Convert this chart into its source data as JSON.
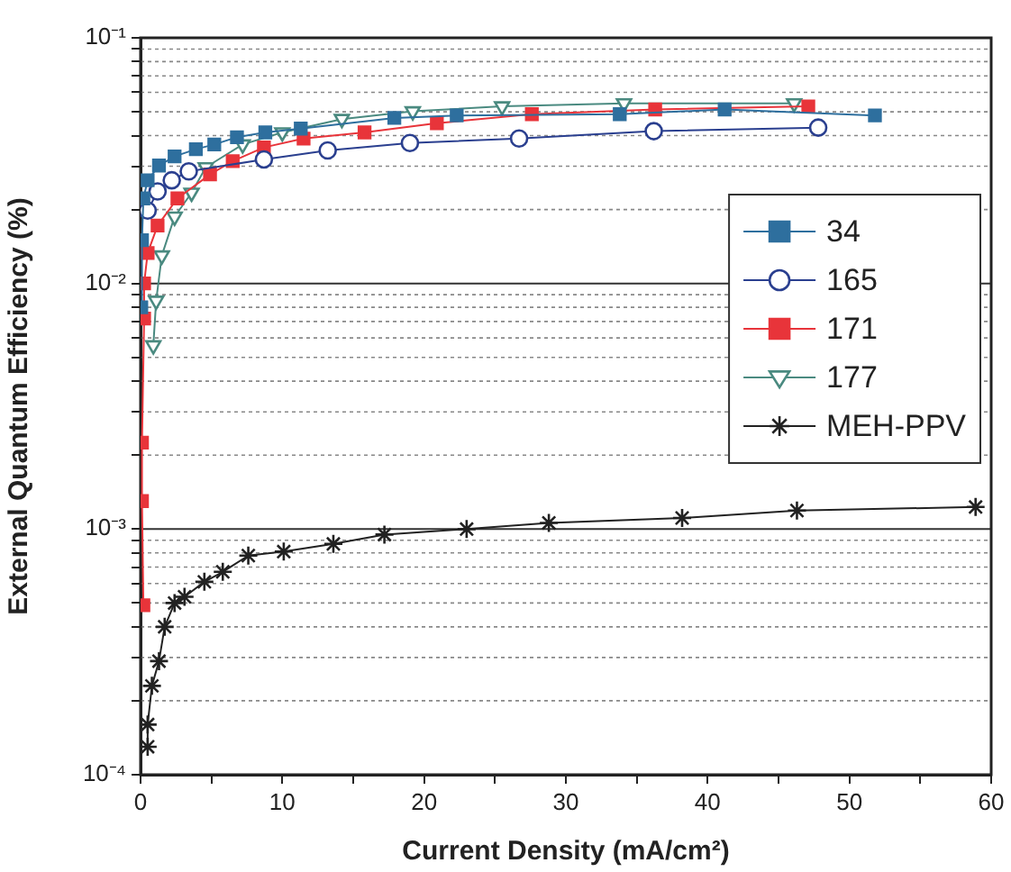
{
  "chart_data": {
    "type": "line",
    "xlabel": "Current Density (mA/cm²)",
    "ylabel": "External Quantum Efficiency (%)",
    "log": "y",
    "grid": "y",
    "legend": "right",
    "xlim": [
      0,
      60
    ],
    "ylim": [
      0.0001,
      0.1
    ],
    "xticks": [
      0,
      {
        "value": 5,
        "label": null
      },
      10,
      {
        "value": 15,
        "label": null
      },
      20,
      {
        "value": 25,
        "label": null
      },
      30,
      {
        "value": 35,
        "label": null
      },
      40,
      {
        "value": 45,
        "label": null
      },
      50,
      {
        "value": 55,
        "label": null
      },
      60
    ],
    "yticks": [
      {
        "value": 0.0001,
        "label": "10⁻⁴"
      },
      {
        "value": 0.0002,
        "label": null
      },
      {
        "value": 0.0003,
        "label": null
      },
      {
        "value": 0.0004,
        "label": null
      },
      {
        "value": 0.0005,
        "label": null
      },
      {
        "value": 0.0006,
        "label": null
      },
      {
        "value": 0.0007,
        "label": null
      },
      {
        "value": 0.0008,
        "label": null
      },
      {
        "value": 0.0009,
        "label": null
      },
      {
        "value": 0.001,
        "label": "10⁻³"
      },
      {
        "value": 0.002,
        "label": null
      },
      {
        "value": 0.003,
        "label": null
      },
      {
        "value": 0.004,
        "label": null
      },
      {
        "value": 0.005,
        "label": null
      },
      {
        "value": 0.006,
        "label": null
      },
      {
        "value": 0.007,
        "label": null
      },
      {
        "value": 0.008,
        "label": null
      },
      {
        "value": 0.009,
        "label": null
      },
      {
        "value": 0.01,
        "label": "10⁻²"
      },
      {
        "value": 0.02,
        "label": null
      },
      {
        "value": 0.03,
        "label": null
      },
      {
        "value": 0.04,
        "label": null
      },
      {
        "value": 0.05,
        "label": null
      },
      {
        "value": 0.06,
        "label": null
      },
      {
        "value": 0.07,
        "label": null
      },
      {
        "value": 0.08,
        "label": null
      },
      {
        "value": 0.09,
        "label": null
      },
      {
        "value": 0.1,
        "label": "10⁻¹"
      }
    ],
    "series": [
      {
        "name": "34",
        "color": "#2e6f9e",
        "marker": "square",
        "x": [
          0.05,
          0.1,
          0.2,
          0.5,
          1.3,
          2.4,
          3.9,
          5.2,
          6.8,
          8.8,
          11.3,
          17.9,
          22.3,
          33.8,
          41.2,
          51.8
        ],
        "values": [
          0.008,
          0.015,
          0.0222,
          0.0263,
          0.0302,
          0.0329,
          0.0352,
          0.0368,
          0.0394,
          0.0412,
          0.0427,
          0.0472,
          0.0483,
          0.0489,
          0.0511,
          0.0483
        ]
      },
      {
        "name": "165",
        "color": "#2a3f8f",
        "marker": "circle",
        "x": [
          0.5,
          1.2,
          2.2,
          3.4,
          8.7,
          13.2,
          19.0,
          26.7,
          36.2,
          47.8
        ],
        "values": [
          0.0198,
          0.0237,
          0.0263,
          0.0286,
          0.032,
          0.0348,
          0.0373,
          0.0389,
          0.0417,
          0.0431
        ]
      },
      {
        "name": "171",
        "color": "#e8343a",
        "marker": "square",
        "x": [
          0.2,
          0.1,
          0.1,
          0.25,
          0.25,
          0.5,
          1.2,
          2.6,
          4.9,
          6.5,
          8.7,
          11.5,
          15.8,
          20.9,
          27.6,
          36.3,
          47.1
        ],
        "values": [
          0.00049,
          0.0013,
          0.00225,
          0.0072,
          0.01,
          0.0133,
          0.0172,
          0.0222,
          0.0278,
          0.0315,
          0.0358,
          0.0389,
          0.0412,
          0.0449,
          0.0489,
          0.0511,
          0.0526
        ]
      },
      {
        "name": "177",
        "color": "#4a8a80",
        "marker": "triangle",
        "x": [
          0.9,
          1.1,
          1.5,
          2.4,
          3.6,
          4.6,
          7.2,
          10.0,
          14.2,
          19.2,
          25.5,
          34.1,
          46.1
        ],
        "values": [
          0.0056,
          0.0085,
          0.013,
          0.0187,
          0.0234,
          0.0297,
          0.0368,
          0.0412,
          0.0467,
          0.0502,
          0.0526,
          0.0541,
          0.0541
        ]
      },
      {
        "name": "MEH-PPV",
        "color": "#222222",
        "marker": "cross",
        "x": [
          0.5,
          0.5,
          0.8,
          1.3,
          1.7,
          2.4,
          3.1,
          4.5,
          5.8,
          7.6,
          10.1,
          13.6,
          17.2,
          23.0,
          28.8,
          38.2,
          46.3,
          58.9
        ],
        "values": [
          0.00013,
          0.00016,
          0.00023,
          0.00029,
          0.0004,
          0.0005,
          0.00053,
          0.00061,
          0.00067,
          0.00078,
          0.00081,
          0.00087,
          0.00095,
          0.001,
          0.00106,
          0.00111,
          0.00119,
          0.00123
        ]
      }
    ]
  }
}
